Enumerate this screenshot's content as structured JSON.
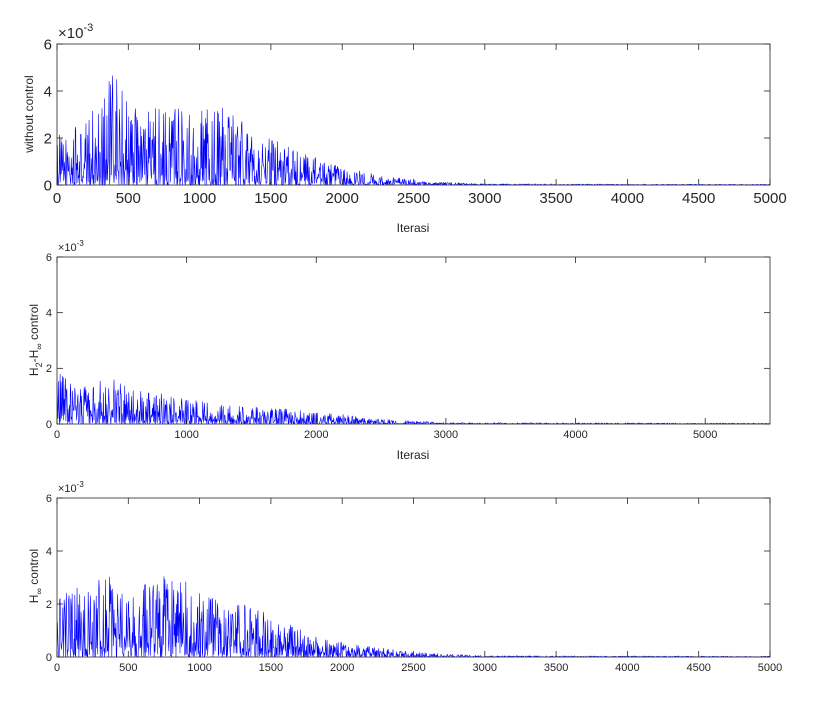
{
  "chart_data": [
    {
      "type": "line",
      "ylabel": "without control",
      "xlabel": "Iterasi",
      "exponent_base": "×10",
      "exponent_power": "-3",
      "xlim": [
        0,
        5000
      ],
      "ylim": [
        0,
        0.006
      ],
      "xticks": [
        "0",
        "500",
        "1000",
        "1500",
        "2000",
        "2500",
        "3000",
        "3500",
        "4000",
        "4500",
        "5000"
      ],
      "yticks": [
        "0",
        "2",
        "4",
        "6"
      ],
      "series": [
        {
          "color": "#0000ff",
          "envelope": {
            "x": [
              0,
              200,
              400,
              600,
              800,
              1000,
              1200,
              1400,
              1600,
              1800,
              2000,
              2200,
              2400,
              2600,
              2800,
              3000,
              5000
            ],
            "peak_y": [
              0.0021,
              0.0027,
              0.005,
              0.003,
              0.0036,
              0.0033,
              0.0033,
              0.0021,
              0.0018,
              0.0012,
              0.00075,
              0.0005,
              0.0003,
              0.00015,
              0.0001,
              5e-05,
              3e-05
            ]
          }
        }
      ]
    },
    {
      "type": "line",
      "ylabel_parts": [
        "H",
        "2",
        "-H",
        "∞",
        " control"
      ],
      "xlabel": "Iterasi",
      "exponent_base": "×10",
      "exponent_power": "-3",
      "xlim": [
        0,
        5500
      ],
      "ylim": [
        0,
        0.006
      ],
      "xticks": [
        "0",
        "1000",
        "2000",
        "3000",
        "4000",
        "5000"
      ],
      "yticks": [
        "0",
        "2",
        "4",
        "6"
      ],
      "series": [
        {
          "color": "#0000ff",
          "envelope": {
            "x": [
              0,
              200,
              400,
              600,
              800,
              1000,
              1200,
              1400,
              1600,
              1800,
              2000,
              2200,
              2400,
              2600,
              2800,
              3000,
              5500
            ],
            "peak_y": [
              0.0019,
              0.0015,
              0.0017,
              0.0012,
              0.0011,
              0.0009,
              0.0008,
              0.00065,
              0.0006,
              0.00055,
              0.0004,
              0.00035,
              0.0002,
              0.00015,
              0.0001,
              5e-05,
              3e-05
            ]
          }
        }
      ]
    },
    {
      "type": "line",
      "ylabel_parts": [
        "H",
        "∞",
        " control"
      ],
      "xlabel": "",
      "exponent_base": "×10",
      "exponent_power": "-3",
      "xlim": [
        0,
        5000
      ],
      "ylim": [
        0,
        0.006
      ],
      "xticks": [
        "0",
        "500",
        "1000",
        "1500",
        "2000",
        "2500",
        "3000",
        "3500",
        "4000",
        "4500",
        "5000"
      ],
      "yticks": [
        "0",
        "2",
        "4",
        "6"
      ],
      "series": [
        {
          "color": "#0000ff",
          "envelope": {
            "x": [
              0,
              200,
              400,
              600,
              800,
              1000,
              1200,
              1400,
              1600,
              1800,
              2000,
              2200,
              2400,
              2600,
              2800,
              3000,
              5000
            ],
            "peak_y": [
              0.0022,
              0.003,
              0.0031,
              0.0027,
              0.0032,
              0.0025,
              0.0021,
              0.0019,
              0.0014,
              0.0008,
              0.0006,
              0.0004,
              0.00025,
              0.00015,
              0.0001,
              5e-05,
              3e-05
            ]
          }
        }
      ]
    }
  ]
}
